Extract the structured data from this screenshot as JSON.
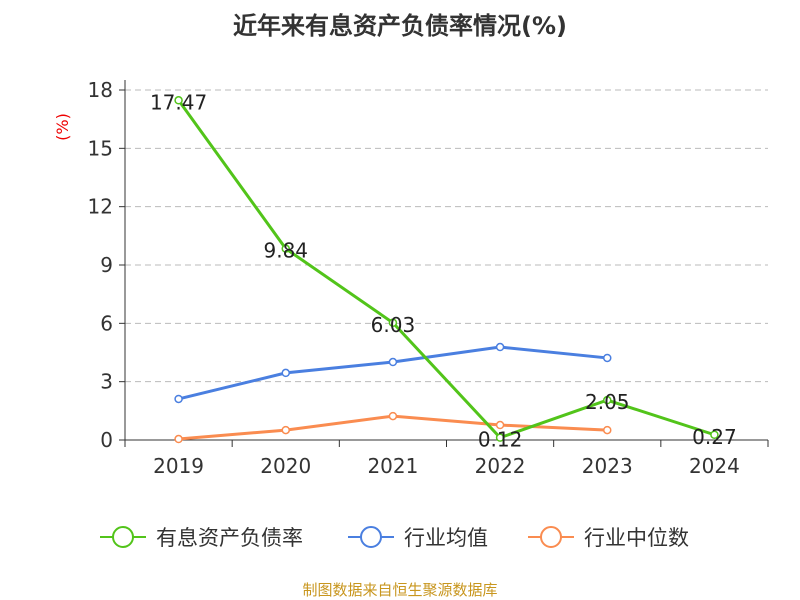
{
  "chart_data": {
    "type": "line",
    "title": "近年来有息资产负债率情况(%)",
    "ylabel": "(%)",
    "xlabel": "",
    "categories": [
      "2019",
      "2020",
      "2021",
      "2022",
      "2023",
      "2024"
    ],
    "ylim": [
      0,
      18
    ],
    "yticks": [
      0,
      3,
      6,
      9,
      12,
      15,
      18
    ],
    "grid": true,
    "legend_position": "bottom",
    "series": [
      {
        "name": "有息资产负债率",
        "color": "#52c41a",
        "values": [
          17.47,
          9.84,
          6.03,
          0.12,
          2.05,
          0.27
        ],
        "labels": [
          "17.47",
          "9.84",
          "6.03",
          "0.12",
          "2.05",
          "0.27"
        ]
      },
      {
        "name": "行业均值",
        "color": "#4a7fe0",
        "values": [
          2.11,
          3.45,
          4.01,
          4.78,
          4.22,
          null
        ]
      },
      {
        "name": "行业中位数",
        "color": "#fa8c50",
        "values": [
          0.05,
          0.51,
          1.23,
          0.77,
          0.51,
          null
        ]
      }
    ]
  },
  "footer": "制图数据来自恒生聚源数据库"
}
